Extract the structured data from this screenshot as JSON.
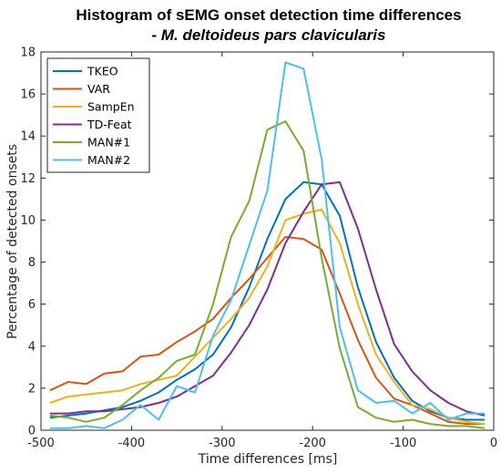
{
  "chart_data": {
    "type": "line",
    "title": "Histogram of sEMG onset detection time differences",
    "subtitle": "- M. deltoideus pars clavicularis",
    "xlabel": "Time differences [ms]",
    "ylabel": "Percentage of detected onsets",
    "xlim": [
      -500,
      0
    ],
    "ylim": [
      0,
      18
    ],
    "xticks": [
      -500,
      -400,
      -300,
      -200,
      -100,
      0
    ],
    "yticks": [
      0,
      2,
      4,
      6,
      8,
      10,
      12,
      14,
      16,
      18
    ],
    "grid": false,
    "legend_position": "top-left",
    "x": [
      -490,
      -470,
      -450,
      -430,
      -410,
      -390,
      -370,
      -350,
      -330,
      -310,
      -290,
      -270,
      -250,
      -230,
      -210,
      -190,
      -170,
      -150,
      -130,
      -110,
      -90,
      -70,
      -50,
      -30,
      -10
    ],
    "series": [
      {
        "name": "TKEO",
        "color": "#0072BD",
        "values": [
          0.6,
          0.7,
          0.8,
          0.95,
          1.1,
          1.4,
          1.8,
          2.4,
          2.9,
          3.6,
          4.9,
          6.8,
          9.1,
          11.0,
          11.8,
          11.7,
          10.2,
          6.8,
          4.2,
          2.5,
          1.4,
          0.9,
          0.6,
          0.5,
          0.5
        ]
      },
      {
        "name": "VAR",
        "color": "#D95319",
        "values": [
          1.9,
          2.3,
          2.2,
          2.7,
          2.8,
          3.5,
          3.6,
          4.2,
          4.7,
          5.3,
          6.3,
          7.2,
          8.2,
          9.2,
          9.1,
          8.6,
          6.5,
          4.3,
          2.5,
          1.5,
          1.2,
          0.8,
          0.4,
          0.3,
          0.3
        ]
      },
      {
        "name": "SampEn",
        "color": "#EDB120",
        "values": [
          1.3,
          1.6,
          1.7,
          1.8,
          1.9,
          2.2,
          2.4,
          2.6,
          3.5,
          4.4,
          5.3,
          6.3,
          7.8,
          10.0,
          10.3,
          10.5,
          8.9,
          6.0,
          3.6,
          2.3,
          1.2,
          1.0,
          0.6,
          0.4,
          0.3
        ]
      },
      {
        "name": "TD-Feat",
        "color": "#7E2F8E",
        "values": [
          0.8,
          0.8,
          0.9,
          0.9,
          1.0,
          1.1,
          1.3,
          1.6,
          2.1,
          2.6,
          3.7,
          5.0,
          6.7,
          8.9,
          10.4,
          11.7,
          11.8,
          9.6,
          6.7,
          4.1,
          2.8,
          1.9,
          1.3,
          0.9,
          0.7
        ]
      },
      {
        "name": "MAN#1",
        "color": "#77AC30",
        "values": [
          0.7,
          0.6,
          0.4,
          0.6,
          1.2,
          1.9,
          2.5,
          3.3,
          3.6,
          6.0,
          9.2,
          10.9,
          14.3,
          14.7,
          13.3,
          8.2,
          3.9,
          1.1,
          0.6,
          0.4,
          0.5,
          0.3,
          0.2,
          0.2,
          0.1
        ]
      },
      {
        "name": "MAN#2",
        "color": "#4DBEEE",
        "values": [
          0.1,
          0.1,
          0.2,
          0.1,
          0.5,
          1.2,
          0.5,
          2.1,
          1.8,
          4.5,
          6.2,
          8.8,
          11.4,
          17.5,
          17.2,
          12.9,
          4.9,
          1.9,
          1.3,
          1.4,
          0.8,
          1.3,
          0.5,
          0.8,
          0.8
        ]
      }
    ]
  }
}
